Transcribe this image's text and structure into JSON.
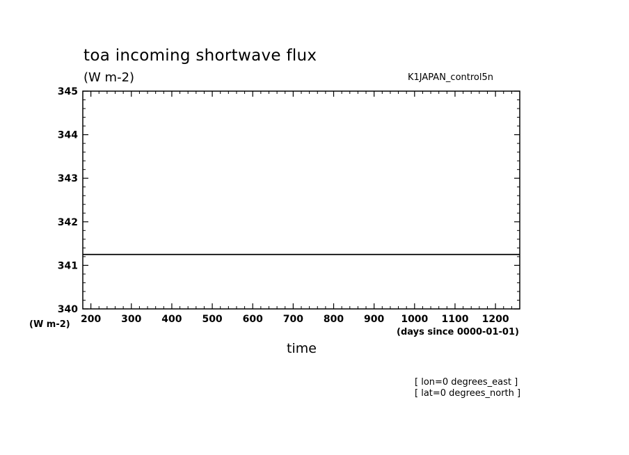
{
  "chart_data": {
    "type": "line",
    "title": "toa incoming shortwave flux",
    "subtitle": "(W m-2)",
    "run_name": "K1JAPAN_control5n",
    "xlabel": "time",
    "xunits": "(days since 0000-01-01)",
    "yunits": "(W m-2)",
    "xlim": [
      180,
      1260
    ],
    "ylim": [
      340,
      345
    ],
    "xticks": [
      200,
      300,
      400,
      500,
      600,
      700,
      800,
      900,
      1000,
      1100,
      1200
    ],
    "yticks": [
      340,
      341,
      342,
      343,
      344,
      345
    ],
    "grid": false,
    "series": [
      {
        "x": [
          180,
          1260
        ],
        "y": [
          341.25,
          341.25
        ]
      }
    ],
    "footnotes": [
      "[ lon=0 degrees_east ]",
      "[ lat=0 degrees_north ]"
    ]
  }
}
